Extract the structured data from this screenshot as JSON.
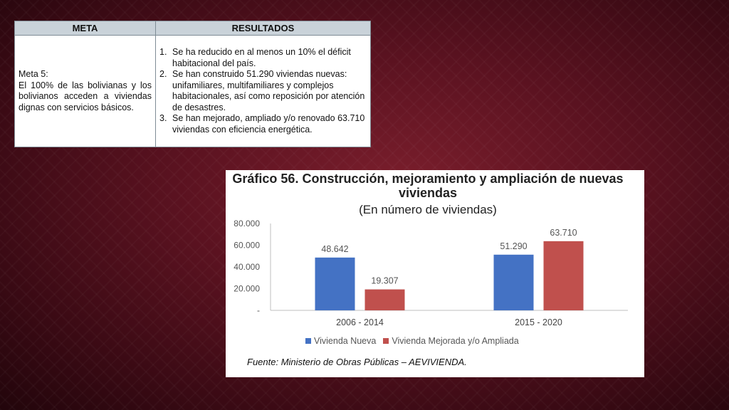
{
  "table": {
    "headers": [
      "META",
      "RESULTADOS"
    ],
    "meta_title": "Meta 5:",
    "meta_text": "El 100% de las bolivianas y los bolivianos acceden a viviendas dignas con servicios básicos.",
    "results": [
      {
        "num": "1.",
        "text": "Se ha reducido en al menos un 10% el déficit habitacional del país."
      },
      {
        "num": "2.",
        "text": "Se han construido 51.290 viviendas nuevas: unifamiliares, multifamiliares y complejos habitacionales, así como reposición por atención de desastres."
      },
      {
        "num": "3.",
        "text": "Se han mejorado, ampliado y/o renovado 63.710 viviendas con eficiencia energética."
      }
    ]
  },
  "chart_data": {
    "type": "bar",
    "title": "Gráfico 56. Construcción, mejoramiento y ampliación de nuevas viviendas",
    "subtitle": "(En número de viviendas)",
    "categories": [
      "2006 - 2014",
      "2015 - 2020"
    ],
    "series": [
      {
        "name": "Vivienda Nueva",
        "color": "#4472c4",
        "values": [
          48642,
          51290
        ],
        "labels": [
          "48.642",
          "51.290"
        ]
      },
      {
        "name": "Vivienda Mejorada y/o Ampliada",
        "color": "#c0504d",
        "values": [
          19307,
          63710
        ],
        "labels": [
          "19.307",
          "63.710"
        ]
      }
    ],
    "yticks": [
      0,
      20000,
      40000,
      60000,
      80000
    ],
    "ytick_labels": [
      "-",
      "20.000",
      "40.000",
      "60.000",
      "80.000"
    ],
    "ylim": [
      0,
      80000
    ],
    "grid": false,
    "legend_position": "bottom",
    "source": "Fuente: Ministerio de Obras Públicas – AEVIVIENDA."
  }
}
